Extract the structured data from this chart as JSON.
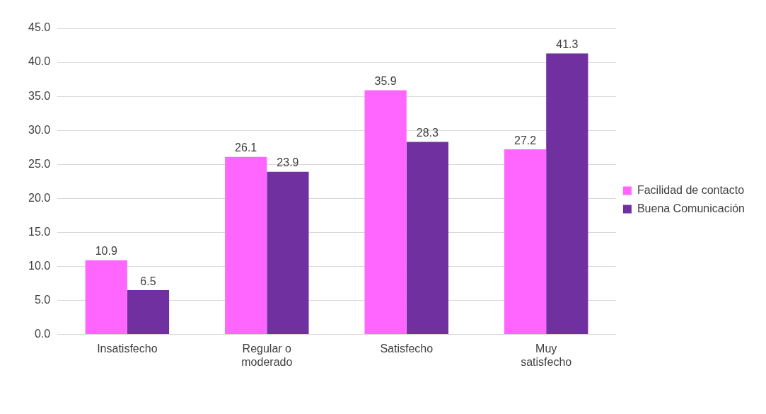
{
  "chart_data": {
    "type": "bar",
    "categories": [
      "Insatisfecho",
      "Regular o moderado",
      "Satisfecho",
      "Muy satisfecho"
    ],
    "series": [
      {
        "name": "Facilidad de contacto",
        "color": "#ff66ff",
        "values": [
          10.9,
          26.1,
          35.9,
          27.2
        ]
      },
      {
        "name": "Buena Comunicación",
        "color": "#7030a0",
        "values": [
          6.5,
          23.9,
          28.3,
          41.3
        ]
      }
    ],
    "ylim": [
      0,
      45
    ],
    "yticks": [
      {
        "value": 0,
        "label": "0.0"
      },
      {
        "value": 5,
        "label": "5.0"
      },
      {
        "value": 10,
        "label": "10.0"
      },
      {
        "value": 15,
        "label": "15.0"
      },
      {
        "value": 20,
        "label": "20.0"
      },
      {
        "value": 25,
        "label": "25.0"
      },
      {
        "value": 30,
        "label": "30.0"
      },
      {
        "value": 35,
        "label": "35.0"
      },
      {
        "value": 40,
        "label": "40.0"
      },
      {
        "value": 45,
        "label": "45.0"
      }
    ],
    "grid": "y",
    "legend": "right",
    "data_labels": true
  }
}
